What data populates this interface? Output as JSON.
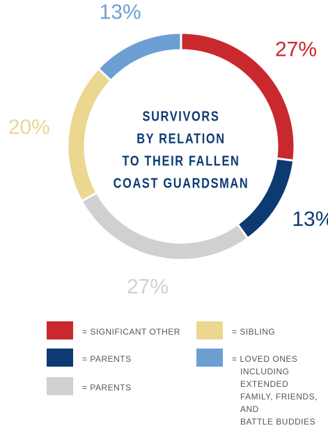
{
  "chart_data": {
    "type": "donut",
    "title": [
      "SURVIVORS",
      "BY RELATION",
      "TO THEIR FALLEN",
      "COAST GUARDSMAN"
    ],
    "categories": [
      "= SIGNIFICANT OTHER",
      "= PARENTS",
      "= PARENTS",
      "= SIBLING",
      "= LOVED ONES\nINCLUDING EXTENDED\nFAMILY, FRIENDS, AND\nBATTLE BUDDIES"
    ],
    "values": [
      27,
      13,
      27,
      20,
      13
    ],
    "value_labels": [
      "27%",
      "13%",
      "27%",
      "20%",
      "13%"
    ],
    "colors": [
      "#c9282d",
      "#0d3a72",
      "#d0d0d0",
      "#ecd791",
      "#6d9fd3"
    ]
  }
}
